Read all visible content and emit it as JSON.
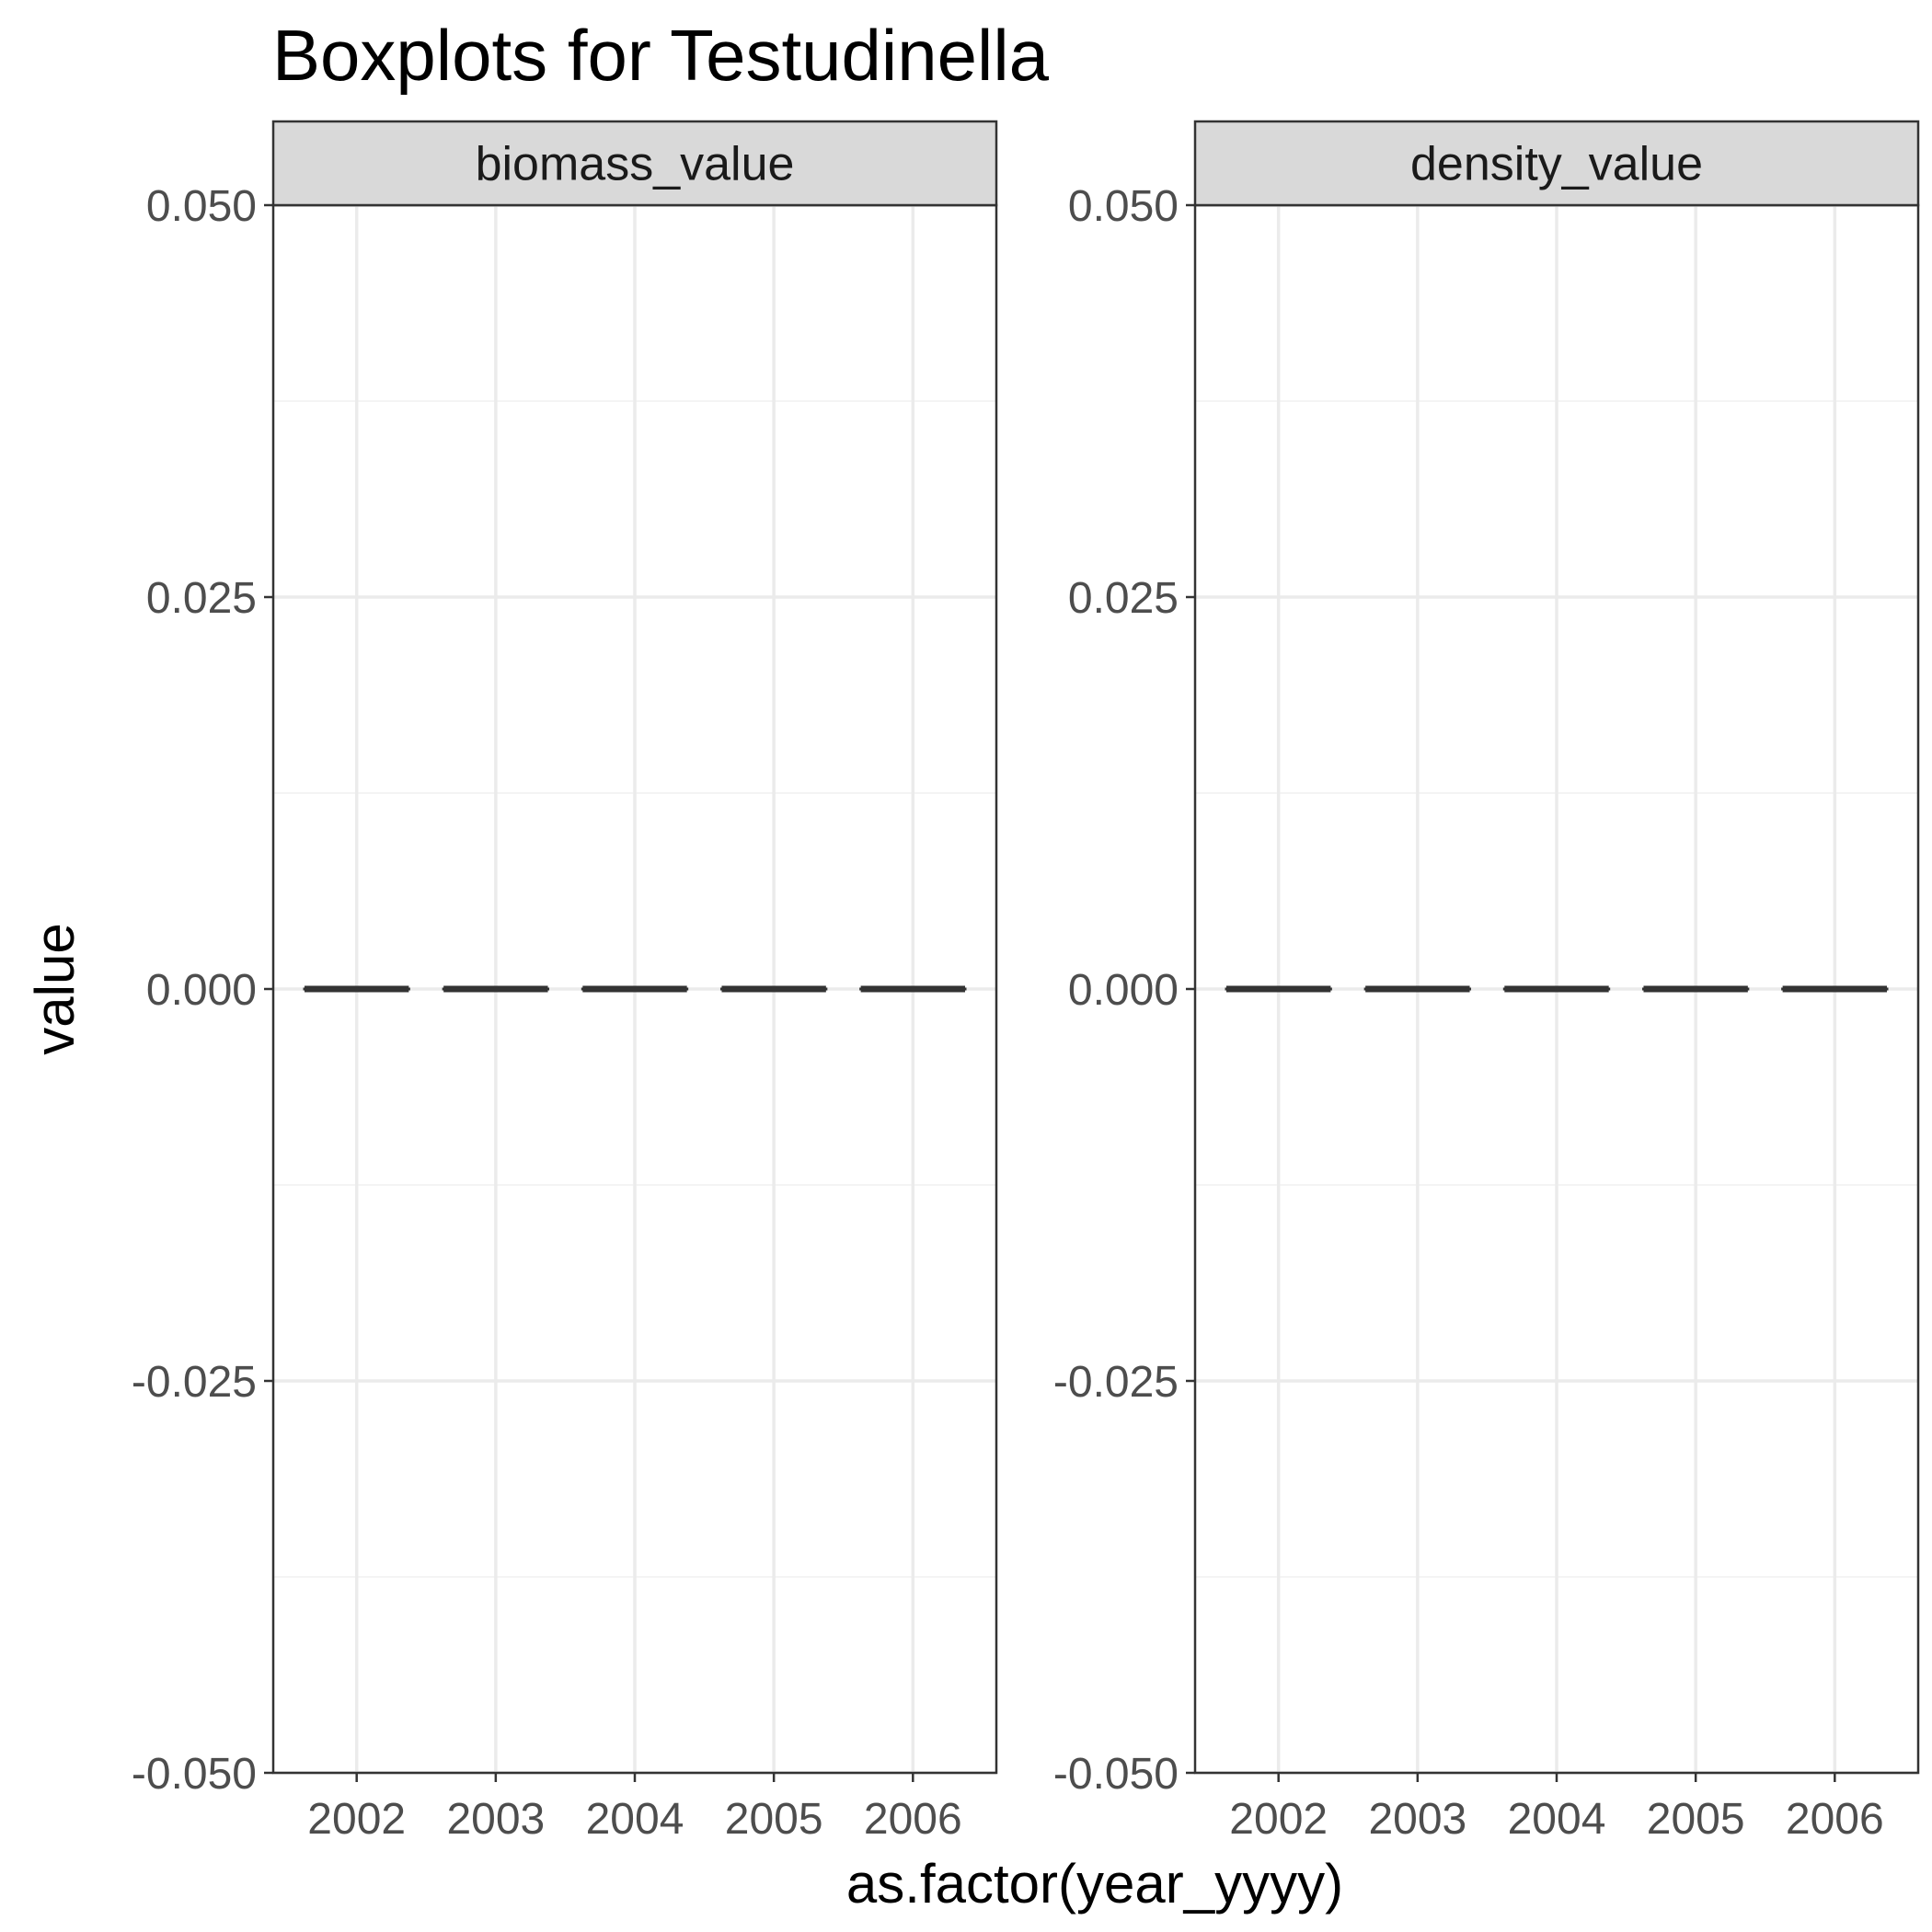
{
  "chart_data": {
    "type": "box",
    "title": "Boxplots for Testudinella",
    "xlabel": "as.factor(year_yyyy)",
    "ylabel": "value",
    "grid": true,
    "facets": [
      {
        "name": "biomass_value",
        "categories": [
          "2002",
          "2003",
          "2004",
          "2005",
          "2006"
        ],
        "boxes": [
          {
            "category": "2002",
            "min": 0,
            "q1": 0,
            "median": 0,
            "q3": 0,
            "max": 0
          },
          {
            "category": "2003",
            "min": 0,
            "q1": 0,
            "median": 0,
            "q3": 0,
            "max": 0
          },
          {
            "category": "2004",
            "min": 0,
            "q1": 0,
            "median": 0,
            "q3": 0,
            "max": 0
          },
          {
            "category": "2005",
            "min": 0,
            "q1": 0,
            "median": 0,
            "q3": 0,
            "max": 0
          },
          {
            "category": "2006",
            "min": 0,
            "q1": 0,
            "median": 0,
            "q3": 0,
            "max": 0
          }
        ],
        "ylim": [
          -0.05,
          0.05
        ],
        "yticks": [
          -0.05,
          -0.025,
          0,
          0.025,
          0.05
        ],
        "ytick_labels": [
          "-0.050",
          "-0.025",
          "0.000",
          "0.025",
          "0.050"
        ]
      },
      {
        "name": "density_value",
        "categories": [
          "2002",
          "2003",
          "2004",
          "2005",
          "2006"
        ],
        "boxes": [
          {
            "category": "2002",
            "min": 0,
            "q1": 0,
            "median": 0,
            "q3": 0,
            "max": 0
          },
          {
            "category": "2003",
            "min": 0,
            "q1": 0,
            "median": 0,
            "q3": 0,
            "max": 0
          },
          {
            "category": "2004",
            "min": 0,
            "q1": 0,
            "median": 0,
            "q3": 0,
            "max": 0
          },
          {
            "category": "2005",
            "min": 0,
            "q1": 0,
            "median": 0,
            "q3": 0,
            "max": 0
          },
          {
            "category": "2006",
            "min": 0,
            "q1": 0,
            "median": 0,
            "q3": 0,
            "max": 0
          }
        ],
        "ylim": [
          -0.05,
          0.05
        ],
        "yticks": [
          -0.05,
          -0.025,
          0,
          0.025,
          0.05
        ],
        "ytick_labels": [
          "-0.050",
          "-0.025",
          "0.000",
          "0.025",
          "0.050"
        ]
      }
    ],
    "colors": {
      "box_line": "#333333",
      "grid_major": "#ebebeb",
      "grid_minor": "#f4f4f4",
      "panel_border": "#333333",
      "strip_fill": "#d9d9d9",
      "tick_text": "#4d4d4d"
    }
  }
}
